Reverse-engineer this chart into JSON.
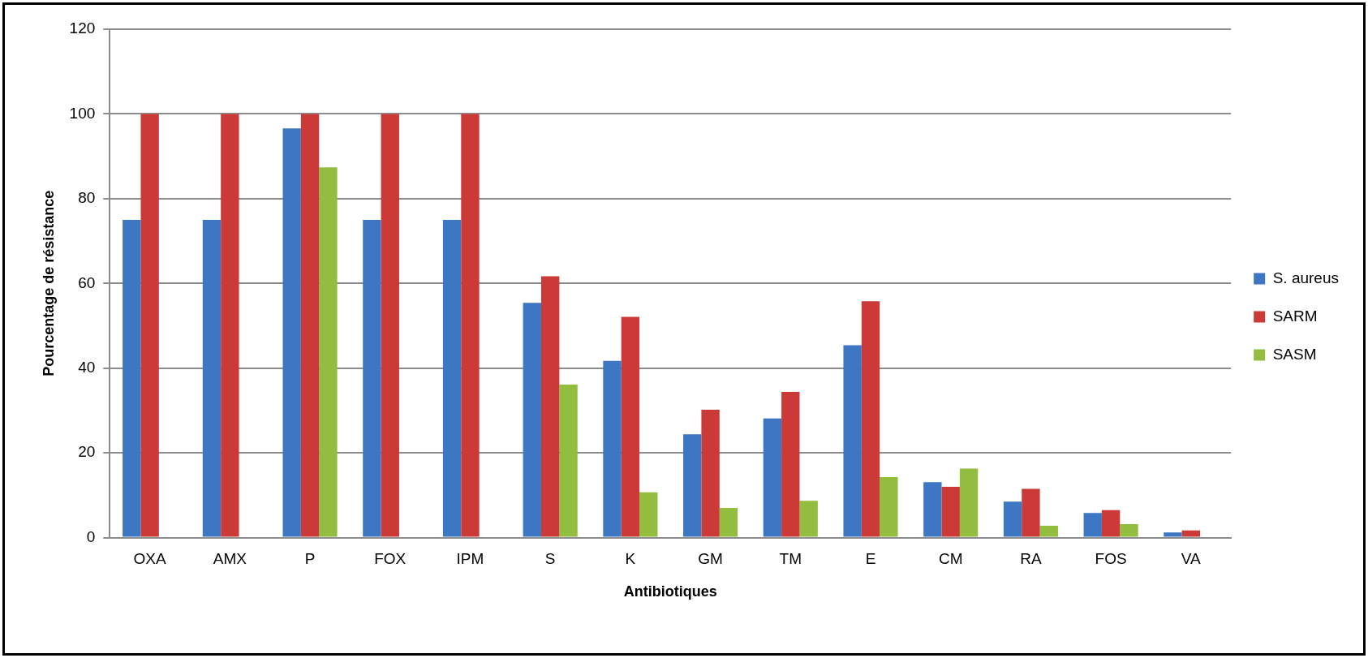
{
  "chart_data": {
    "type": "bar",
    "xlabel": "Antibiotiques",
    "ylabel": "Pourcentage de résistance",
    "categories": [
      "OXA",
      "AMX",
      "P",
      "FOX",
      "IPM",
      "S",
      "K",
      "GM",
      "TM",
      "E",
      "CM",
      "RA",
      "FOS",
      "VA"
    ],
    "series": [
      {
        "name": "S. aureus",
        "color": "#3d77c4",
        "values": [
          75,
          75,
          96.6,
          75,
          75,
          55.4,
          41.7,
          24.4,
          28.1,
          45.4,
          13.1,
          8.5,
          5.8,
          1.2
        ]
      },
      {
        "name": "SARM",
        "color": "#cc3a38",
        "values": [
          100,
          100,
          100,
          100,
          100,
          61.7,
          52.1,
          30.2,
          34.4,
          55.8,
          12.0,
          11.5,
          6.5,
          1.7
        ]
      },
      {
        "name": "SASM",
        "color": "#93bd3f",
        "values": [
          0,
          0,
          87.4,
          0,
          0,
          36.1,
          10.7,
          7.0,
          8.7,
          14.3,
          16.3,
          2.8,
          3.2,
          0
        ]
      }
    ],
    "ylim": [
      0,
      120
    ],
    "yticks": [
      0,
      20,
      40,
      60,
      80,
      100,
      120
    ],
    "grid": "y",
    "legend": "right"
  }
}
